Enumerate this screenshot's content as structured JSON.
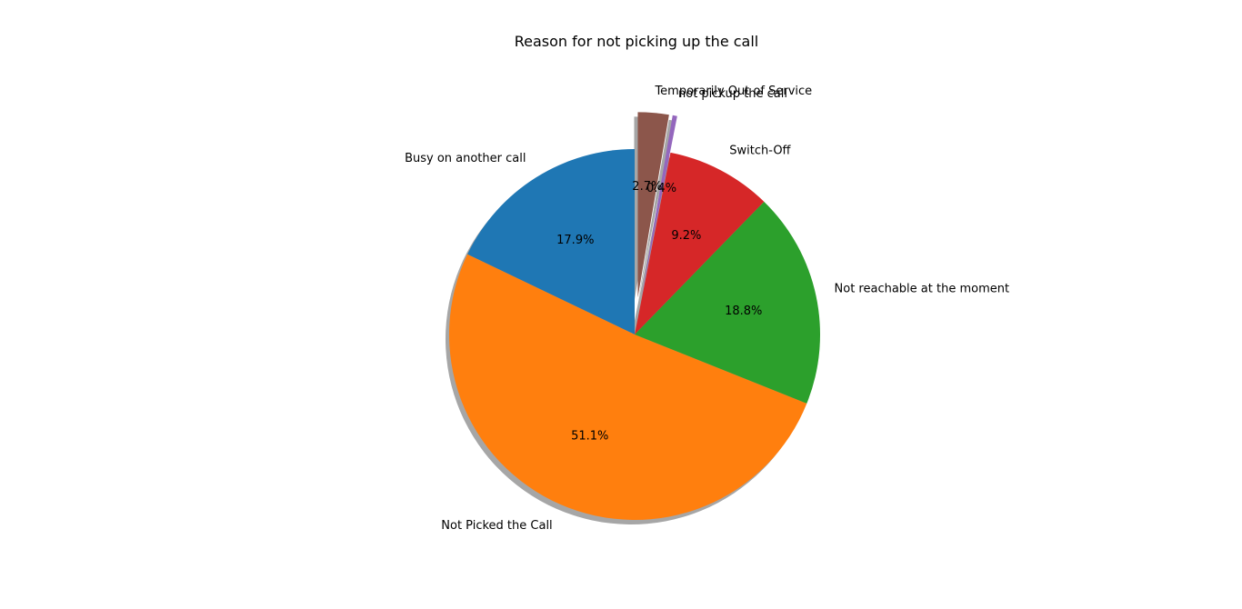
{
  "chart_data": {
    "type": "pie",
    "title": "Reason for not picking up the call",
    "categories": [
      "Busy on another call",
      "Not Picked the Call",
      "Not reachable at the moment",
      "Switch-Off",
      "not pickup the call",
      "Temporarily Out of Service"
    ],
    "values": [
      17.9,
      51.1,
      18.8,
      9.2,
      0.4,
      2.7
    ],
    "percent_labels": [
      "17.9%",
      "51.1%",
      "18.8%",
      "9.2%",
      "0.4%",
      "2.7%"
    ],
    "colors": [
      "#1f77b4",
      "#ff7f0e",
      "#2ca02c",
      "#d62728",
      "#9467bd",
      "#8c564b"
    ],
    "exploded": [
      false,
      false,
      false,
      false,
      true,
      true
    ],
    "shadow": true,
    "start_angle_deg": 90,
    "direction": "counterclockwise",
    "legend": "none"
  }
}
